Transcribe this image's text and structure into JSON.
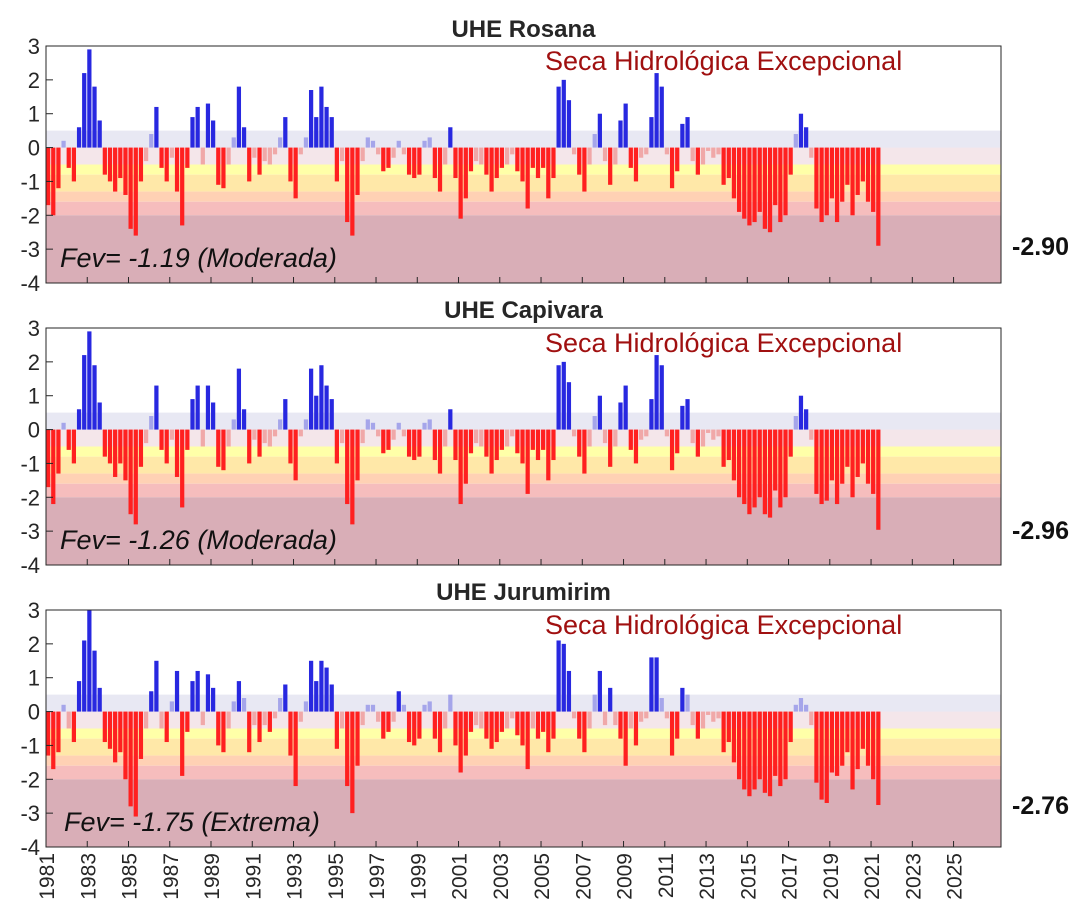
{
  "colors": {
    "band_wet": "#e8e8f3",
    "band_mild": "#ffffff",
    "band_d0": "#ffffa8",
    "band_d1": "#ffe8a8",
    "band_d2": "#ffd1b4",
    "band_d3": "#f6bdbd",
    "band_d4": "#d9aeb7",
    "bar_pos_strong": "#2828e0",
    "bar_pos_light": "#a5a5ea",
    "bar_neg_strong": "#ff2020",
    "bar_neg_light": "#f0a8a8",
    "banner_text": "#a01010"
  },
  "chart_data": [
    {
      "type": "bar",
      "title": "UHE Rosana",
      "banner": "Seca Hidrológica Excepcional",
      "fev": "Fev= -1.19 (Moderada)",
      "last_value": "-2.90",
      "ylabel": "",
      "ylim": [
        -4,
        3
      ],
      "yticks": [
        "3",
        "2",
        "1",
        "0",
        "-1",
        "-2",
        "-3",
        "-4"
      ],
      "xlim": [
        1981,
        2027.3
      ],
      "series": [
        {
          "x_start": 1981.0,
          "step_years": 0.25,
          "values": [
            -1.7,
            -2.0,
            -1.2,
            0.2,
            -0.6,
            -1.0,
            0.6,
            2.2,
            2.9,
            1.8,
            0.8,
            -0.8,
            -1.0,
            -1.3,
            -0.9,
            -1.4,
            -2.4,
            -2.6,
            -1.0,
            -0.4,
            0.4,
            1.2,
            -0.6,
            -1.0,
            -0.3,
            -1.3,
            -2.3,
            -0.6,
            0.9,
            1.2,
            -0.5,
            1.3,
            0.8,
            -1.1,
            -1.2,
            -0.5,
            0.3,
            1.8,
            0.6,
            -1.0,
            -0.3,
            -0.8,
            -0.4,
            -0.5,
            -0.2,
            0.3,
            0.9,
            -1.0,
            -1.5,
            -0.2,
            0.3,
            1.7,
            0.9,
            1.8,
            1.2,
            0.9,
            -1.0,
            -0.4,
            -2.2,
            -2.6,
            -1.4,
            -0.4,
            0.3,
            0.2,
            -0.2,
            -0.7,
            -0.6,
            -0.3,
            0.2,
            -0.2,
            -0.8,
            -0.9,
            -0.8,
            0.2,
            0.3,
            -0.9,
            -1.3,
            -0.5,
            0.6,
            -0.9,
            -2.1,
            -1.5,
            -0.7,
            -0.4,
            -0.5,
            -0.8,
            -1.3,
            -0.9,
            -0.6,
            -0.5,
            -0.2,
            -0.7,
            -1.0,
            -1.8,
            -0.6,
            -0.9,
            -0.6,
            -1.5,
            -0.9,
            1.8,
            2.0,
            1.4,
            -0.2,
            -0.8,
            -1.3,
            -0.5,
            0.4,
            1.0,
            -0.4,
            -1.1,
            -0.5,
            0.8,
            1.3,
            -0.6,
            -1.0,
            -0.3,
            -0.2,
            0.9,
            2.2,
            1.8,
            -0.2,
            -1.2,
            -0.7,
            0.7,
            0.9,
            -0.4,
            -0.8,
            -0.5,
            -0.1,
            -0.3,
            -0.2,
            -1.1,
            -0.9,
            -1.5,
            -1.9,
            -2.1,
            -2.3,
            -2.2,
            -1.9,
            -2.4,
            -2.5,
            -1.7,
            -2.2,
            -2.0,
            -0.8,
            0.4,
            1.0,
            0.6,
            -0.3,
            -1.8,
            -2.2,
            -2.0,
            -1.5,
            -2.2,
            -1.6,
            -1.1,
            -2.0,
            -1.4,
            -1.0,
            -1.6,
            -1.9,
            -2.9
          ]
        }
      ]
    },
    {
      "type": "bar",
      "title": "UHE Capivara",
      "banner": "Seca Hidrológica Excepcional",
      "fev": "Fev= -1.26 (Moderada)",
      "last_value": "-2.96",
      "ylabel": "",
      "ylim": [
        -4,
        3
      ],
      "yticks": [
        "3",
        "2",
        "1",
        "0",
        "-1",
        "-2",
        "-3",
        "-4"
      ],
      "xlim": [
        1981,
        2027.3
      ],
      "series": [
        {
          "x_start": 1981.0,
          "step_years": 0.25,
          "values": [
            -1.7,
            -2.2,
            -1.3,
            0.2,
            -0.6,
            -1.0,
            0.6,
            2.2,
            2.9,
            1.9,
            0.8,
            -0.8,
            -1.0,
            -1.4,
            -1.0,
            -1.5,
            -2.5,
            -2.8,
            -1.1,
            -0.4,
            0.4,
            1.3,
            -0.6,
            -1.0,
            -0.3,
            -1.4,
            -2.3,
            -0.6,
            0.9,
            1.3,
            -0.5,
            1.3,
            0.8,
            -1.1,
            -1.2,
            -0.5,
            0.3,
            1.8,
            0.6,
            -1.0,
            -0.3,
            -0.8,
            -0.4,
            -0.5,
            -0.2,
            0.3,
            0.9,
            -1.0,
            -1.5,
            -0.2,
            0.3,
            1.8,
            1.0,
            1.9,
            1.3,
            0.9,
            -1.0,
            -0.4,
            -2.2,
            -2.8,
            -1.5,
            -0.4,
            0.3,
            0.2,
            -0.2,
            -0.7,
            -0.6,
            -0.3,
            0.2,
            -0.2,
            -0.8,
            -0.9,
            -0.8,
            0.2,
            0.3,
            -0.9,
            -1.3,
            -0.5,
            0.6,
            -0.9,
            -2.2,
            -1.6,
            -0.7,
            -0.4,
            -0.5,
            -0.8,
            -1.3,
            -0.9,
            -0.6,
            -0.5,
            -0.2,
            -0.7,
            -1.0,
            -1.9,
            -0.6,
            -0.9,
            -0.6,
            -1.5,
            -0.9,
            1.9,
            2.0,
            1.4,
            -0.2,
            -0.8,
            -1.3,
            -0.5,
            0.4,
            1.0,
            -0.4,
            -1.1,
            -0.5,
            0.8,
            1.3,
            -0.6,
            -1.0,
            -0.3,
            -0.2,
            0.9,
            2.2,
            1.9,
            -0.2,
            -1.2,
            -0.7,
            0.7,
            0.9,
            -0.4,
            -0.8,
            -0.5,
            -0.1,
            -0.3,
            -0.2,
            -1.1,
            -0.9,
            -1.5,
            -2.0,
            -2.2,
            -2.5,
            -2.3,
            -2.0,
            -2.5,
            -2.6,
            -1.8,
            -2.3,
            -2.0,
            -0.8,
            0.4,
            1.0,
            0.6,
            -0.3,
            -1.9,
            -2.2,
            -2.1,
            -1.5,
            -2.2,
            -1.6,
            -1.1,
            -2.0,
            -1.4,
            -1.0,
            -1.6,
            -1.9,
            -2.96
          ]
        }
      ]
    },
    {
      "type": "bar",
      "title": "UHE Jurumirim",
      "banner": "Seca Hidrológica Excepcional",
      "fev": "Fev= -1.75 (Extrema)",
      "last_value": "-2.76",
      "ylabel": "",
      "ylim": [
        -4,
        3
      ],
      "yticks": [
        "3",
        "2",
        "1",
        "0",
        "-1",
        "-2",
        "-3",
        "-4"
      ],
      "xticks": [
        "1981",
        "1983",
        "1985",
        "1987",
        "1989",
        "1991",
        "1993",
        "1995",
        "1997",
        "1999",
        "2001",
        "2003",
        "2005",
        "2007",
        "2009",
        "2011",
        "2013",
        "2015",
        "2017",
        "2019",
        "2021",
        "2023",
        "2025"
      ],
      "xlim": [
        1981,
        2027.3
      ],
      "series": [
        {
          "x_start": 1981.0,
          "step_years": 0.25,
          "values": [
            -1.3,
            -1.7,
            -1.2,
            0.2,
            -0.5,
            -0.9,
            0.9,
            2.1,
            3.0,
            1.8,
            0.7,
            -0.9,
            -1.1,
            -1.5,
            -1.2,
            -2.0,
            -2.8,
            -3.1,
            -1.4,
            -0.5,
            0.6,
            1.5,
            -0.5,
            -0.9,
            0.3,
            1.2,
            -1.9,
            -0.6,
            0.9,
            1.2,
            -0.4,
            1.1,
            0.7,
            -1.0,
            -1.2,
            -0.5,
            0.3,
            0.9,
            0.4,
            -1.2,
            -0.4,
            -0.9,
            -0.4,
            -0.6,
            -0.2,
            0.4,
            0.8,
            -1.3,
            -2.2,
            -0.3,
            0.3,
            1.5,
            0.9,
            1.5,
            1.3,
            0.8,
            -1.1,
            -0.5,
            -2.2,
            -3.0,
            -1.6,
            -0.4,
            0.2,
            0.2,
            -0.3,
            -0.8,
            -0.6,
            -0.3,
            0.6,
            0.2,
            -0.9,
            -1.0,
            -0.8,
            0.2,
            0.3,
            -0.8,
            -1.2,
            -0.5,
            0.5,
            -1.0,
            -1.8,
            -1.3,
            -0.6,
            -0.4,
            -0.5,
            -0.8,
            -1.1,
            -0.9,
            -0.6,
            -0.5,
            -0.2,
            -0.7,
            -1.0,
            -1.7,
            -0.5,
            -0.8,
            -0.6,
            -1.2,
            -0.8,
            2.1,
            2.0,
            1.2,
            -0.2,
            -0.8,
            -1.2,
            -0.5,
            0.5,
            1.2,
            -0.4,
            0.7,
            -0.4,
            -0.8,
            -1.6,
            -0.5,
            -1.0,
            -0.3,
            -0.2,
            1.6,
            1.6,
            0.4,
            -0.2,
            -1.3,
            -0.8,
            0.7,
            0.5,
            -0.4,
            -0.8,
            -0.5,
            -0.1,
            -0.3,
            -0.2,
            -1.2,
            -0.9,
            -1.5,
            -2.0,
            -2.3,
            -2.5,
            -2.3,
            -2.0,
            -2.4,
            -2.5,
            -1.9,
            -2.2,
            -2.0,
            -0.9,
            0.2,
            0.4,
            0.2,
            -0.4,
            -2.1,
            -2.6,
            -2.7,
            -1.8,
            -1.9,
            -1.6,
            -1.2,
            -2.3,
            -1.7,
            -1.1,
            -1.6,
            -2.0,
            -2.76
          ]
        }
      ]
    }
  ]
}
